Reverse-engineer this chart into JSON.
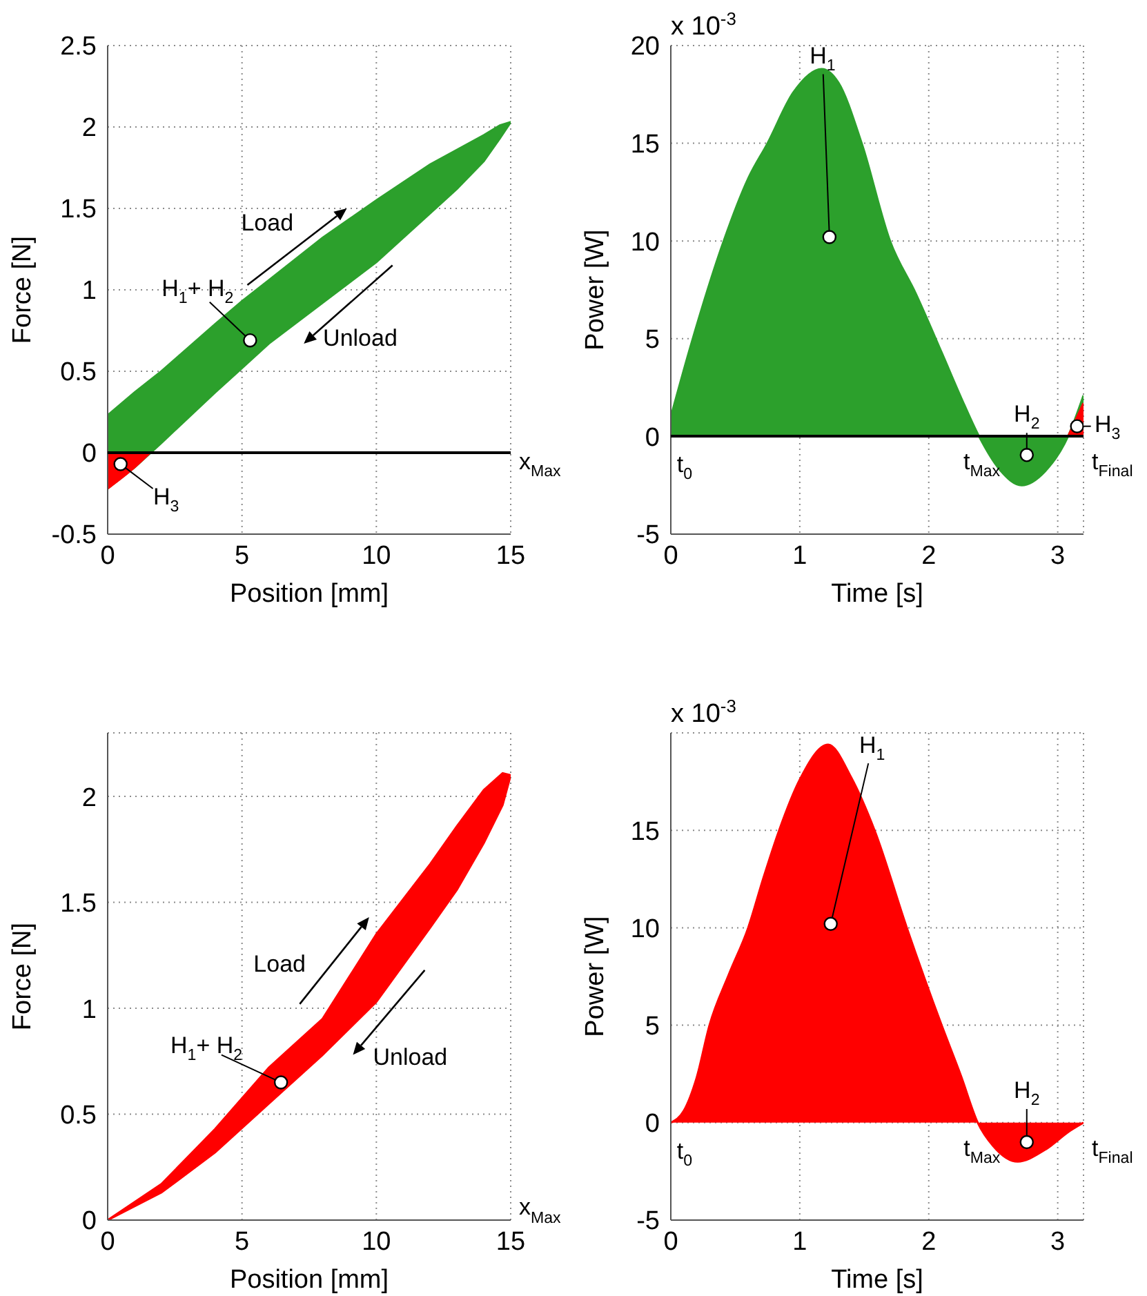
{
  "chart_data": [
    {
      "type": "area",
      "xlabel": "Position [mm]",
      "ylabel": "Force [N]",
      "xlim": [
        0,
        15
      ],
      "xticks": [
        0,
        5,
        10,
        15
      ],
      "ylim": [
        -0.5,
        2.5
      ],
      "yticks": [
        -0.5,
        0,
        0.5,
        1,
        1.5,
        2,
        2.5
      ],
      "grid": true,
      "ref_lines": [
        {
          "axis": "y",
          "value": 0,
          "color": "#000000"
        }
      ],
      "series": [
        {
          "color": "#2ca02c",
          "x": [
            0,
            1,
            2,
            4,
            5,
            6,
            8,
            10,
            12,
            13,
            14,
            14.6,
            15,
            14.6,
            14,
            13,
            12,
            10,
            8,
            6,
            5,
            4,
            2,
            1,
            0,
            0
          ],
          "values": [
            0.23,
            0.37,
            0.5,
            0.79,
            0.93,
            1.06,
            1.32,
            1.55,
            1.77,
            1.86,
            1.95,
            2.01,
            2.03,
            1.93,
            1.79,
            1.62,
            1.47,
            1.17,
            0.92,
            0.67,
            0.52,
            0.37,
            0.06,
            -0.09,
            -0.22,
            0.23
          ]
        },
        {
          "color": "#ff0000",
          "x": [
            0,
            1,
            1.58
          ],
          "values": [
            -0.22,
            -0.09,
            0
          ]
        },
        {
          "type": "scatter",
          "color": "#ffffff",
          "marker": "circle",
          "x": [
            5.3,
            0.48
          ],
          "values": [
            0.69,
            -0.07
          ]
        }
      ],
      "annotations": [
        "Load",
        "Unload",
        {
          "text": "H$_{1}$+ H$_{2}$",
          "x": 5.3,
          "y": 0.69
        },
        {
          "text": "H$_{3}$",
          "x": 0.48,
          "y": -0.07
        },
        {
          "text": "x$_{Max}$",
          "x": 15,
          "y": 0
        }
      ]
    },
    {
      "type": "area",
      "xlabel": "Time [s]",
      "ylabel": "Power [W]",
      "xlim": [
        0,
        3.2
      ],
      "xticks": [
        0,
        1,
        2,
        3
      ],
      "ylim": [
        -5,
        20
      ],
      "yticks": [
        -5,
        0,
        5,
        10,
        15,
        20
      ],
      "grid": true,
      "ref_lines": [
        {
          "axis": "y",
          "value": 0,
          "color": "#000000"
        }
      ],
      "series": [
        {
          "color": "#2ca02c",
          "x": [
            0,
            0.17,
            0.41,
            0.6,
            0.75,
            0.95,
            1.17,
            1.3,
            1.48,
            1.7,
            1.9,
            2.1,
            2.25,
            2.39,
            2.55,
            2.72,
            2.9,
            3.08,
            3.2
          ],
          "values": [
            1.0,
            5,
            10,
            13.2,
            15,
            17.6,
            18.8,
            18.1,
            15,
            10,
            7.3,
            4.3,
            2.0,
            0,
            -1.7,
            -2.5,
            -1.8,
            0,
            2.1
          ]
        },
        {
          "color": "#ff0000",
          "x": [
            3.08,
            3.2
          ],
          "values": [
            0,
            1.7
          ]
        },
        {
          "type": "scatter",
          "color": "#ffffff",
          "marker": "circle",
          "x": [
            1.23,
            2.76,
            3.15
          ],
          "values": [
            10.2,
            -0.95,
            0.52
          ]
        }
      ],
      "annotations": [
        "x 10$^{-3}$",
        {
          "text": "H$_{1}$",
          "x": 1.23,
          "y": 10.2
        },
        {
          "text": "H$_{2}$",
          "x": 2.76,
          "y": -0.95
        },
        {
          "text": "H$_{3}$",
          "x": 3.15,
          "y": 0.52
        },
        {
          "text": "t$_{0}$",
          "x": 0,
          "y": 0
        },
        {
          "text": "t$_{Max}$",
          "x": 2.39,
          "y": 0
        },
        {
          "text": "t$_{Final}$",
          "x": 3.2,
          "y": 0
        }
      ]
    },
    {
      "type": "area",
      "xlabel": "Position [mm]",
      "ylabel": "Force [N]",
      "xlim": [
        0,
        15
      ],
      "xticks": [
        0,
        5,
        10,
        15
      ],
      "ylim": [
        0,
        2.3
      ],
      "yticks": [
        0,
        0.5,
        1,
        1.5,
        2
      ],
      "grid": true,
      "series": [
        {
          "color": "#ff0000",
          "x": [
            0,
            2,
            4,
            6,
            8,
            10,
            12,
            13,
            14,
            14.7,
            15,
            14.7,
            14,
            13,
            12,
            10,
            8,
            6,
            4,
            2,
            0
          ],
          "values": [
            0,
            0.17,
            0.43,
            0.72,
            0.95,
            1.35,
            1.68,
            1.86,
            2.03,
            2.11,
            2.1,
            1.96,
            1.78,
            1.56,
            1.38,
            1.03,
            0.78,
            0.55,
            0.32,
            0.13,
            0
          ]
        },
        {
          "type": "scatter",
          "color": "#ffffff",
          "marker": "circle",
          "x": [
            6.45
          ],
          "values": [
            0.65
          ]
        }
      ],
      "annotations": [
        "Load",
        "Unload",
        {
          "text": "H$_{1}$+ H$_{2}$",
          "x": 6.45,
          "y": 0.65
        },
        "x$_{Max}$"
      ]
    },
    {
      "type": "area",
      "xlabel": "Time [s]",
      "ylabel": "Power [W]",
      "xlim": [
        0,
        3.2
      ],
      "xticks": [
        0,
        1,
        2,
        3
      ],
      "ylim": [
        -5,
        20
      ],
      "yticks": [
        -5,
        0,
        5,
        10,
        15
      ],
      "grid": true,
      "series": [
        {
          "color": "#ff0000",
          "x": [
            0,
            0.1,
            0.2,
            0.3,
            0.45,
            0.6,
            0.72,
            0.84,
            1.0,
            1.22,
            1.4,
            1.58,
            1.83,
            2.1,
            2.25,
            2.38,
            2.5,
            2.69,
            2.9,
            3.1,
            3.2
          ],
          "values": [
            0,
            0.6,
            2.3,
            5,
            7.6,
            10,
            12.6,
            15,
            17.6,
            19.4,
            17.7,
            15,
            10,
            5,
            2.4,
            0,
            -1.2,
            -2.0,
            -1.4,
            -0.4,
            0
          ]
        },
        {
          "type": "scatter",
          "color": "#ffffff",
          "marker": "circle",
          "x": [
            1.24,
            2.76
          ],
          "values": [
            10.2,
            -1.0
          ]
        }
      ],
      "annotations": [
        "x 10$^{-3}$",
        {
          "text": "H$_{1}$",
          "x": 1.24,
          "y": 10.2
        },
        {
          "text": "H$_{2}$",
          "x": 2.76,
          "y": -1.0
        },
        {
          "text": "t$_{0}$",
          "x": 0,
          "y": 0
        },
        {
          "text": "t$_{Max}$",
          "x": 2.38,
          "y": 0
        },
        {
          "text": "t$_{Final}$",
          "x": 3.2,
          "y": 0
        }
      ]
    }
  ]
}
